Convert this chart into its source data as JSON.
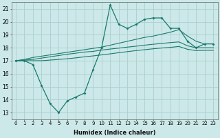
{
  "xlabel": "Humidex (Indice chaleur)",
  "x": [
    0,
    1,
    2,
    3,
    4,
    5,
    6,
    7,
    8,
    9,
    10,
    11,
    12,
    13,
    14,
    15,
    16,
    17,
    18,
    19,
    20,
    21,
    22,
    23
  ],
  "line_wavy": [
    17.0,
    17.0,
    16.7,
    15.1,
    13.7,
    13.0,
    13.9,
    14.2,
    14.5,
    16.3,
    18.0,
    21.3,
    19.8,
    19.5,
    19.8,
    20.2,
    20.3,
    20.3,
    19.5,
    19.5,
    18.5,
    18.0,
    18.3,
    18.3
  ],
  "line_upper": [
    17.0,
    17.1,
    17.25,
    17.35,
    17.45,
    17.55,
    17.65,
    17.75,
    17.85,
    17.95,
    18.05,
    18.2,
    18.35,
    18.5,
    18.65,
    18.8,
    18.9,
    19.05,
    19.2,
    19.4,
    18.9,
    18.5,
    18.3,
    18.3
  ],
  "line_mid": [
    17.0,
    17.05,
    17.1,
    17.2,
    17.3,
    17.4,
    17.5,
    17.58,
    17.67,
    17.72,
    17.82,
    17.9,
    17.97,
    18.05,
    18.12,
    18.2,
    18.27,
    18.33,
    18.4,
    18.45,
    18.15,
    18.0,
    18.0,
    18.0
  ],
  "line_lower": [
    17.0,
    17.0,
    17.0,
    17.0,
    17.05,
    17.1,
    17.15,
    17.22,
    17.3,
    17.37,
    17.45,
    17.53,
    17.62,
    17.7,
    17.78,
    17.85,
    17.92,
    17.98,
    18.03,
    18.1,
    17.88,
    17.78,
    17.8,
    17.8
  ],
  "color": "#1a7a6e",
  "bg_color": "#cce8e8",
  "grid_color": "#aad0d0",
  "ylim": [
    12.5,
    21.5
  ],
  "yticks": [
    13,
    14,
    15,
    16,
    17,
    18,
    19,
    20,
    21
  ],
  "xticks": [
    0,
    1,
    2,
    3,
    4,
    5,
    6,
    7,
    8,
    9,
    10,
    11,
    12,
    13,
    14,
    15,
    16,
    17,
    18,
    19,
    20,
    21,
    22,
    23
  ],
  "tick_fontsize": 5.0,
  "xlabel_fontsize": 6.0
}
